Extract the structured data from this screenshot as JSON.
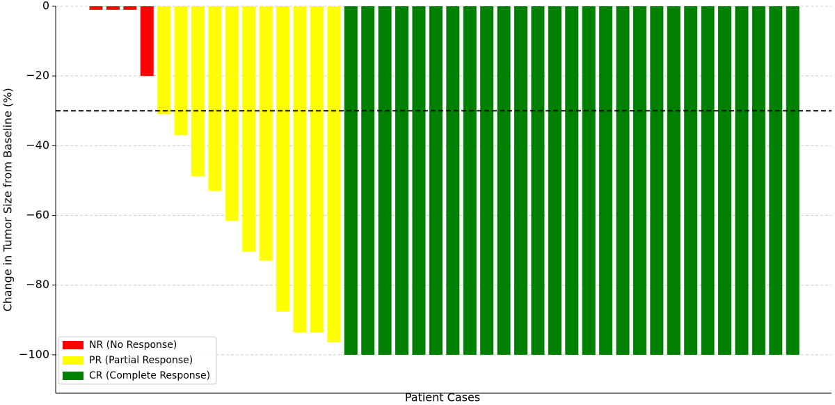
{
  "chart_data": {
    "type": "bar",
    "y_label": "Change in Tumor Size from Baseline (%)",
    "x_label": "Patient Cases",
    "categories": [
      null,
      null,
      null,
      null,
      null,
      null,
      null,
      null,
      null,
      null,
      null,
      null,
      null,
      null,
      null,
      null,
      null,
      null,
      null,
      null,
      null,
      null,
      null,
      null,
      null,
      null,
      null,
      null,
      null,
      null,
      null,
      null,
      null,
      null,
      null,
      null,
      null,
      null,
      null,
      null,
      null,
      null
    ],
    "series": [
      {
        "name": "NR (No Response)",
        "color": "#ff0000",
        "values": [
          -1,
          -1,
          -1,
          -20,
          null,
          null,
          null,
          null,
          null,
          null,
          null,
          null,
          null,
          null,
          null,
          null,
          null,
          null,
          null,
          null,
          null,
          null,
          null,
          null,
          null,
          null,
          null,
          null,
          null,
          null,
          null,
          null,
          null,
          null,
          null,
          null,
          null,
          null,
          null,
          null,
          null,
          null
        ]
      },
      {
        "name": "PR (Partial Response)",
        "color": "#ffff00",
        "values": [
          null,
          null,
          null,
          null,
          -31,
          -37,
          -48.8,
          -53,
          -61.6,
          -70.4,
          -73,
          -87.6,
          -93.6,
          -93.6,
          -96.4,
          null,
          null,
          null,
          null,
          null,
          null,
          null,
          null,
          null,
          null,
          null,
          null,
          null,
          null,
          null,
          null,
          null,
          null,
          null,
          null,
          null,
          null,
          null,
          null,
          null,
          null,
          null
        ]
      },
      {
        "name": "CR (Complete Response)",
        "color": "#008000",
        "values": [
          null,
          null,
          null,
          null,
          null,
          null,
          null,
          null,
          null,
          null,
          null,
          null,
          null,
          null,
          null,
          -100,
          -100,
          -100,
          -100,
          -100,
          -100,
          -100,
          -100,
          -100,
          -100,
          -100,
          -100,
          -100,
          -100,
          -100,
          -100,
          -100,
          -100,
          -100,
          -100,
          -100,
          -100,
          -100,
          -100,
          -100,
          -100,
          -100
        ]
      }
    ],
    "threshold": -30,
    "ylim": [
      -111,
      0
    ],
    "yticks": [
      {
        "value": -100,
        "label": "−100"
      },
      {
        "value": -80,
        "label": "−80"
      },
      {
        "value": -60,
        "label": "−60"
      },
      {
        "value": -40,
        "label": "−40"
      },
      {
        "value": -20,
        "label": "−20"
      },
      0
    ],
    "grid": true,
    "legend": "lower left"
  }
}
